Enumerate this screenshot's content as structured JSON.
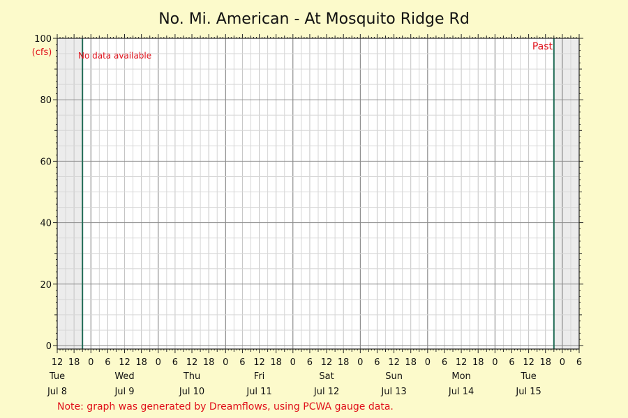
{
  "chart_data": {
    "type": "line",
    "title": "No. Mi. American - At Mosquito Ridge Rd",
    "ylabel": "(cfs)",
    "ylim": [
      0,
      100
    ],
    "y_ticks": [
      0,
      20,
      40,
      60,
      80,
      100
    ],
    "x_start_hour": 12,
    "x_end_hour": 198,
    "x_hour_labels": [
      "12",
      "18",
      "0",
      "6",
      "12",
      "18",
      "0",
      "6",
      "12",
      "18",
      "0",
      "6",
      "12",
      "18",
      "0",
      "6",
      "12",
      "18",
      "0",
      "6",
      "12",
      "18",
      "0",
      "6",
      "12",
      "18",
      "0",
      "6",
      "12",
      "18",
      "0",
      "6"
    ],
    "days": [
      {
        "weekday": "Tue",
        "date": "Jul 8"
      },
      {
        "weekday": "Wed",
        "date": "Jul 9"
      },
      {
        "weekday": "Thu",
        "date": "Jul 10"
      },
      {
        "weekday": "Fri",
        "date": "Jul 11"
      },
      {
        "weekday": "Sat",
        "date": "Jul 12"
      },
      {
        "weekday": "Sun",
        "date": "Jul 13"
      },
      {
        "weekday": "Mon",
        "date": "Jul 14"
      },
      {
        "weekday": "Tue",
        "date": "Jul 15"
      }
    ],
    "data_window_start_hour": 21,
    "data_window_end_hour": 189,
    "series": [],
    "no_data_text": "No data available",
    "past_label": "Past",
    "note": "Note: graph was generated by Dreamflows, using PCWA gauge data.",
    "grid": true,
    "colors": {
      "background": "#fcfacb",
      "plot": "#ffffff",
      "outside_window": "#ececec",
      "window_line": "#1f6b55",
      "annotation": "#e0101a"
    }
  }
}
